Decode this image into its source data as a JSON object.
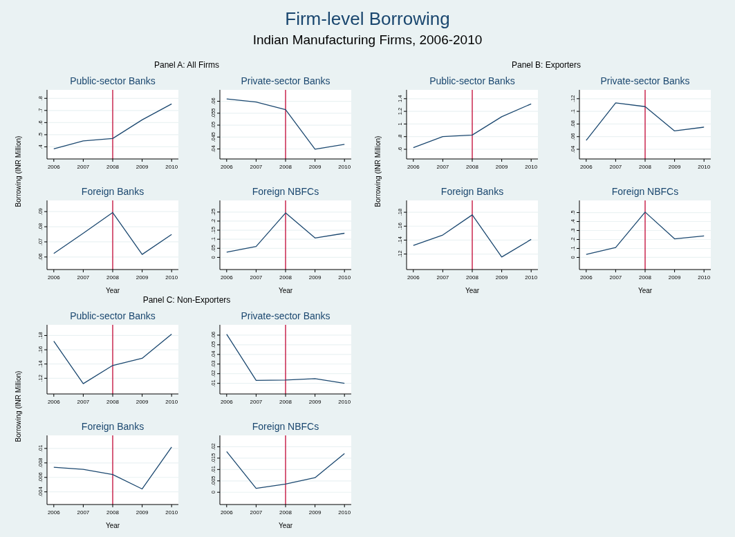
{
  "chart_data": [
    {
      "type": "line",
      "title": "Public-sector Banks",
      "ylabel": "Borrowing (INR Million)",
      "annotations": [
        "Firm-level Borrowing",
        "Indian Manufacturing Firms, 2006-2010",
        "Panel A: All Firms"
      ],
      "x": [
        2006,
        2007,
        2008,
        2009,
        2010
      ],
      "xlim": [
        2005.77,
        2010.23
      ],
      "xticks": [
        2006,
        2007,
        2008,
        2009,
        2010
      ],
      "ylim": [
        0.3,
        0.87
      ],
      "yticks": [
        {
          "value": 0.4,
          "label": ".4"
        },
        {
          "value": 0.5,
          "label": ".5"
        },
        {
          "value": 0.6,
          "label": ".6"
        },
        {
          "value": 0.7,
          "label": ".7"
        },
        {
          "value": 0.8,
          "label": ".8"
        }
      ],
      "grid": "y",
      "ref_lines": [
        {
          "axis": "x",
          "value": 2008,
          "color": "#c10534"
        }
      ],
      "series": [
        {
          "color": "#1a476f",
          "values": [
            0.383,
            0.449,
            0.469,
            0.623,
            0.754
          ]
        }
      ]
    },
    {
      "type": "line",
      "title": "Private-sector Banks",
      "x": [
        2006,
        2007,
        2008,
        2009,
        2010
      ],
      "xlim": [
        2005.77,
        2010.23
      ],
      "xticks": [
        2006,
        2007,
        2008,
        2009,
        2010
      ],
      "ylim": [
        0.0358,
        0.0648
      ],
      "yticks": [
        {
          "value": 0.04,
          "label": ".04"
        },
        {
          "value": 0.045,
          "label": ".045"
        },
        {
          "value": 0.05,
          "label": ".05"
        },
        {
          "value": 0.055,
          "label": ".055"
        },
        {
          "value": 0.06,
          "label": ".06"
        }
      ],
      "grid": "y",
      "ref_lines": [
        {
          "axis": "x",
          "value": 2008,
          "color": "#c10534"
        }
      ],
      "series": [
        {
          "color": "#1a476f",
          "values": [
            0.061,
            0.0597,
            0.0565,
            0.0399,
            0.0419
          ]
        }
      ]
    },
    {
      "type": "line",
      "title": "Foreign Banks",
      "xlabel": "Year",
      "x": [
        2006,
        2007,
        2008,
        2009,
        2010
      ],
      "xlim": [
        2005.77,
        2010.23
      ],
      "xticks": [
        2006,
        2007,
        2008,
        2009,
        2010
      ],
      "ylim": [
        0.0517,
        0.0974
      ],
      "yticks": [
        {
          "value": 0.06,
          "label": ".06"
        },
        {
          "value": 0.07,
          "label": ".07"
        },
        {
          "value": 0.08,
          "label": ".08"
        },
        {
          "value": 0.09,
          "label": ".09"
        }
      ],
      "grid": "y",
      "ref_lines": [
        {
          "axis": "x",
          "value": 2008,
          "color": "#c10534"
        }
      ],
      "series": [
        {
          "color": "#1a476f",
          "values": [
            0.0623,
            0.0757,
            0.0894,
            0.0617,
            0.0749
          ]
        }
      ]
    },
    {
      "type": "line",
      "title": "Foreign NBFCs",
      "xlabel": "Year",
      "x": [
        2006,
        2007,
        2008,
        2009,
        2010
      ],
      "xlim": [
        2005.77,
        2010.23
      ],
      "xticks": [
        2006,
        2007,
        2008,
        2009,
        2010
      ],
      "ylim": [
        -0.067,
        0.314
      ],
      "yticks": [
        0,
        {
          "value": 0.05,
          "label": ".05"
        },
        {
          "value": 0.1,
          "label": ".1"
        },
        {
          "value": 0.15,
          "label": ".15"
        },
        {
          "value": 0.2,
          "label": ".2"
        },
        {
          "value": 0.25,
          "label": ".25"
        }
      ],
      "grid": "y",
      "ref_lines": [
        {
          "axis": "x",
          "value": 2008,
          "color": "#c10534"
        }
      ],
      "series": [
        {
          "color": "#1a476f",
          "values": [
            0.029,
            0.06,
            0.245,
            0.107,
            0.133
          ]
        }
      ]
    },
    {
      "type": "line",
      "title": "Public-sector Banks",
      "ylabel": "Borrowing (INR Million)",
      "annotations": [
        "Panel B: Exporters"
      ],
      "x": [
        2006,
        2007,
        2008,
        2009,
        2010
      ],
      "xlim": [
        2005.77,
        2010.23
      ],
      "xticks": [
        2006,
        2007,
        2008,
        2009,
        2010
      ],
      "ylim": [
        0.447,
        1.54
      ],
      "yticks": [
        {
          "value": 0.6,
          "label": ".6"
        },
        {
          "value": 0.8,
          "label": ".8"
        },
        1,
        1.2,
        1.4
      ],
      "grid": "y",
      "ref_lines": [
        {
          "axis": "x",
          "value": 2008,
          "color": "#c10534"
        }
      ],
      "series": [
        {
          "color": "#1a476f",
          "values": [
            0.627,
            0.8,
            0.825,
            1.115,
            1.318
          ]
        }
      ]
    },
    {
      "type": "line",
      "title": "Private-sector Banks",
      "x": [
        2006,
        2007,
        2008,
        2009,
        2010
      ],
      "xlim": [
        2005.77,
        2010.23
      ],
      "xticks": [
        2006,
        2007,
        2008,
        2009,
        2010
      ],
      "ylim": [
        0.0247,
        0.134
      ],
      "yticks": [
        {
          "value": 0.04,
          "label": ".04"
        },
        {
          "value": 0.06,
          "label": ".06"
        },
        {
          "value": 0.08,
          "label": ".08"
        },
        {
          "value": 0.1,
          "label": ".1"
        },
        {
          "value": 0.12,
          "label": ".12"
        }
      ],
      "grid": "y",
      "ref_lines": [
        {
          "axis": "x",
          "value": 2008,
          "color": "#c10534"
        }
      ],
      "series": [
        {
          "color": "#1a476f",
          "values": [
            0.054,
            0.1134,
            0.1075,
            0.069,
            0.075
          ]
        }
      ]
    },
    {
      "type": "line",
      "title": "Foreign Banks",
      "xlabel": "Year",
      "x": [
        2006,
        2007,
        2008,
        2009,
        2010
      ],
      "xlim": [
        2005.77,
        2010.23
      ],
      "xticks": [
        2006,
        2007,
        2008,
        2009,
        2010
      ],
      "ylim": [
        0.0977,
        0.197
      ],
      "yticks": [
        {
          "value": 0.12,
          "label": ".12"
        },
        {
          "value": 0.14,
          "label": ".14"
        },
        {
          "value": 0.16,
          "label": ".16"
        },
        {
          "value": 0.18,
          "label": ".18"
        }
      ],
      "grid": "y",
      "ref_lines": [
        {
          "axis": "x",
          "value": 2008,
          "color": "#c10534"
        }
      ],
      "series": [
        {
          "color": "#1a476f",
          "values": [
            0.1324,
            0.1473,
            0.1763,
            0.1157,
            0.141
          ]
        }
      ]
    },
    {
      "type": "line",
      "title": "Foreign NBFCs",
      "xlabel": "Year",
      "x": [
        2006,
        2007,
        2008,
        2009,
        2010
      ],
      "xlim": [
        2005.77,
        2010.23
      ],
      "xticks": [
        2006,
        2007,
        2008,
        2009,
        2010
      ],
      "ylim": [
        -0.135,
        0.635
      ],
      "yticks": [
        0,
        {
          "value": 0.1,
          "label": ".1"
        },
        {
          "value": 0.2,
          "label": ".2"
        },
        {
          "value": 0.3,
          "label": ".3"
        },
        {
          "value": 0.4,
          "label": ".4"
        },
        {
          "value": 0.5,
          "label": ".5"
        }
      ],
      "grid": "y",
      "ref_lines": [
        {
          "axis": "x",
          "value": 2008,
          "color": "#c10534"
        }
      ],
      "series": [
        {
          "color": "#1a476f",
          "values": [
            0.034,
            0.11,
            0.505,
            0.207,
            0.24
          ]
        }
      ]
    },
    {
      "type": "line",
      "title": "Public-sector Banks",
      "ylabel": "Borrowing (INR Million)",
      "annotations": [
        "Panel C: Non-Exporters"
      ],
      "x": [
        2006,
        2007,
        2008,
        2009,
        2010
      ],
      "xlim": [
        2005.77,
        2010.23
      ],
      "xticks": [
        2006,
        2007,
        2008,
        2009,
        2010
      ],
      "ylim": [
        0.098,
        0.195
      ],
      "yticks": [
        {
          "value": 0.12,
          "label": ".12"
        },
        {
          "value": 0.14,
          "label": ".14"
        },
        {
          "value": 0.16,
          "label": ".16"
        },
        {
          "value": 0.18,
          "label": ".18"
        }
      ],
      "grid": "y",
      "ref_lines": [
        {
          "axis": "x",
          "value": 2008,
          "color": "#c10534"
        }
      ],
      "series": [
        {
          "color": "#1a476f",
          "values": [
            0.172,
            0.1124,
            0.138,
            0.148,
            0.182
          ]
        }
      ]
    },
    {
      "type": "line",
      "title": "Private-sector Banks",
      "x": [
        2006,
        2007,
        2008,
        2009,
        2010
      ],
      "xlim": [
        2005.77,
        2010.23
      ],
      "xticks": [
        2006,
        2007,
        2008,
        2009,
        2010
      ],
      "ylim": [
        -0.001,
        0.0707
      ],
      "yticks": [
        {
          "value": 0.01,
          "label": ".01"
        },
        {
          "value": 0.02,
          "label": ".02"
        },
        {
          "value": 0.03,
          "label": ".03"
        },
        {
          "value": 0.04,
          "label": ".04"
        },
        {
          "value": 0.05,
          "label": ".05"
        },
        {
          "value": 0.06,
          "label": ".06"
        }
      ],
      "grid": "y",
      "ref_lines": [
        {
          "axis": "x",
          "value": 2008,
          "color": "#c10534"
        }
      ],
      "series": [
        {
          "color": "#1a476f",
          "values": [
            0.061,
            0.0131,
            0.0135,
            0.0149,
            0.01
          ]
        }
      ]
    },
    {
      "type": "line",
      "title": "Foreign Banks",
      "xlabel": "Year",
      "x": [
        2006,
        2007,
        2008,
        2009,
        2010
      ],
      "xlim": [
        2005.77,
        2010.23
      ],
      "xticks": [
        2006,
        2007,
        2008,
        2009,
        2010
      ],
      "ylim": [
        0.00225,
        0.0118
      ],
      "yticks": [
        {
          "value": 0.004,
          "label": ".004"
        },
        {
          "value": 0.006,
          "label": ".006"
        },
        {
          "value": 0.008,
          "label": ".008"
        },
        {
          "value": 0.01,
          "label": ".01"
        }
      ],
      "grid": "y",
      "ref_lines": [
        {
          "axis": "x",
          "value": 2008,
          "color": "#c10534"
        }
      ],
      "series": [
        {
          "color": "#1a476f",
          "values": [
            0.0074,
            0.0071,
            0.0064,
            0.0044,
            0.0102
          ]
        }
      ]
    },
    {
      "type": "line",
      "title": "Foreign NBFCs",
      "xlabel": "Year",
      "x": [
        2006,
        2007,
        2008,
        2009,
        2010
      ],
      "xlim": [
        2005.77,
        2010.23
      ],
      "xticks": [
        2006,
        2007,
        2008,
        2009,
        2010
      ],
      "ylim": [
        -0.0054,
        0.025
      ],
      "yticks": [
        0,
        {
          "value": 0.005,
          "label": ".005"
        },
        {
          "value": 0.01,
          "label": ".01"
        },
        {
          "value": 0.015,
          "label": ".015"
        },
        {
          "value": 0.02,
          "label": ".02"
        }
      ],
      "grid": "y",
      "ref_lines": [
        {
          "axis": "x",
          "value": 2008,
          "color": "#c10534"
        }
      ],
      "series": [
        {
          "color": "#1a476f",
          "values": [
            0.0179,
            0.0017,
            0.0036,
            0.0064,
            0.017
          ]
        }
      ]
    }
  ]
}
